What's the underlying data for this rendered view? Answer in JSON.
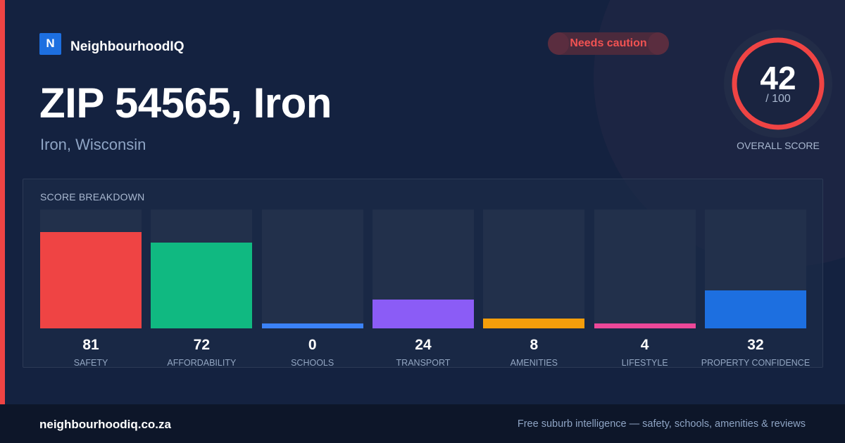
{
  "brand": {
    "logo_letter": "N",
    "name": "NeighbourhoodIQ"
  },
  "badge": {
    "label": "Needs caution",
    "color": "#f05252"
  },
  "header": {
    "title": "ZIP 54565, Iron",
    "subtitle": "Iron, Wisconsin"
  },
  "overall": {
    "score": "42",
    "max_label": "/ 100",
    "label": "OVERALL SCORE",
    "score_fraction": 0.42,
    "ring_color": "#ef4444"
  },
  "breakdown": {
    "title": "SCORE BREAKDOWN"
  },
  "chart_data": {
    "type": "bar",
    "categories": [
      "SAFETY",
      "AFFORDABILITY",
      "SCHOOLS",
      "TRANSPORT",
      "AMENITIES",
      "LIFESTYLE",
      "PROPERTY CONFIDENCE"
    ],
    "values": [
      81,
      72,
      0,
      24,
      8,
      4,
      32
    ],
    "colors": [
      "#ef4444",
      "#10b981",
      "#3b82f6",
      "#8b5cf6",
      "#f59e0b",
      "#ec4899",
      "#1d6fe0"
    ],
    "ylim": [
      0,
      100
    ]
  },
  "footer": {
    "domain": "neighbourhoodiq.co.za",
    "tagline": "Free suburb intelligence — safety, schools, amenities & reviews"
  }
}
